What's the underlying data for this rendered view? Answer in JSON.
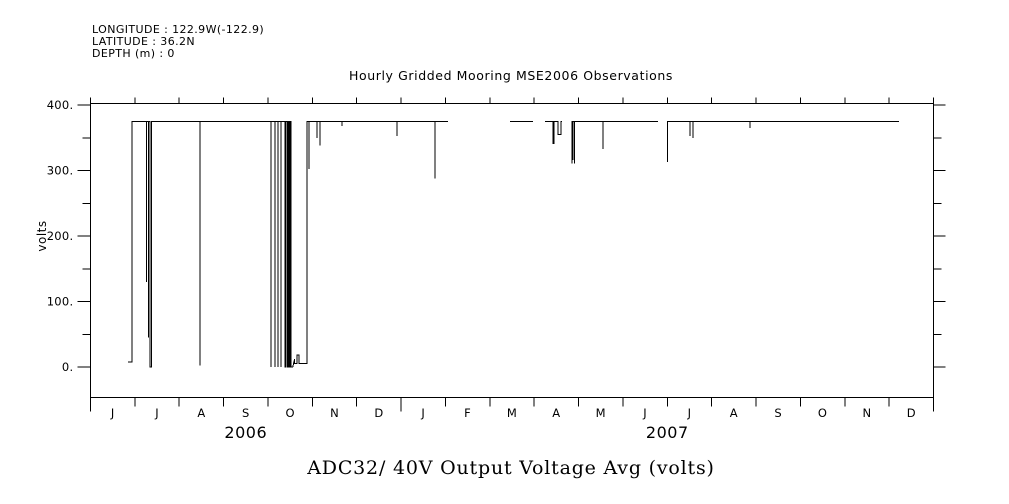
{
  "header": {
    "longitude": "LONGITUDE : 122.9W(-122.9)",
    "latitude": "LATITUDE : 36.2N",
    "depth": "DEPTH (m) : 0"
  },
  "chart_data": {
    "type": "line",
    "title": "Hourly Gridded Mooring MSE2006 Observations",
    "bottom_title": "ADC32/ 40V Output Voltage Avg (volts)",
    "ylabel": "volts",
    "ylim": [
      0,
      400
    ],
    "yticks": [
      {
        "value": 0,
        "label": "0."
      },
      {
        "value": 100,
        "label": "100."
      },
      {
        "value": 200,
        "label": "200."
      },
      {
        "value": 300,
        "label": "300."
      },
      {
        "value": 400,
        "label": "400."
      }
    ],
    "y_minor_ticks": [
      50,
      150,
      250,
      350
    ],
    "grid": false,
    "frame": "box",
    "line_color": "#000000",
    "x_axis": {
      "unit": "months since 2006-06-01",
      "range_months": 19,
      "month_labels": [
        "J",
        "J",
        "A",
        "S",
        "O",
        "N",
        "D",
        "J",
        "F",
        "M",
        "A",
        "M",
        "J",
        "J",
        "A",
        "S",
        "O",
        "N",
        "D"
      ],
      "long_tick_month_indices": [
        0,
        7,
        19
      ],
      "year_labels": [
        {
          "label": "2006",
          "center_month_index": 3.5
        },
        {
          "label": "2007",
          "center_month_index": 13.0
        }
      ]
    },
    "series": [
      {
        "name": "ADC32/ 40V Output Voltage Avg (volts)",
        "color": "#000000",
        "baseline_value": 375,
        "segments": [
          [
            [
              0.845,
              8
            ],
            [
              0.935,
              8
            ],
            [
              0.935,
              375
            ],
            [
              1.26,
              375
            ],
            [
              1.26,
              130
            ],
            [
              1.26,
              375
            ],
            [
              1.31,
              375
            ],
            [
              1.31,
              45
            ],
            [
              1.31,
              375
            ],
            [
              1.34,
              375
            ],
            [
              1.34,
              0
            ],
            [
              1.37,
              0
            ],
            [
              1.37,
              375
            ],
            [
              2.47,
              375
            ],
            [
              2.47,
              2
            ],
            [
              2.47,
              375
            ],
            [
              4.07,
              375
            ],
            [
              4.07,
              0
            ],
            [
              4.07,
              375
            ],
            [
              4.16,
              375
            ],
            [
              4.16,
              0
            ],
            [
              4.16,
              375
            ],
            [
              4.23,
              375
            ],
            [
              4.23,
              0
            ],
            [
              4.23,
              375
            ],
            [
              4.29,
              375
            ],
            [
              4.29,
              0
            ],
            [
              4.29,
              375
            ],
            [
              4.38,
              375
            ],
            [
              4.38,
              0
            ],
            [
              4.4,
              0
            ],
            [
              4.4,
              375
            ],
            [
              4.43,
              375
            ],
            [
              4.43,
              0
            ],
            [
              4.45,
              0
            ],
            [
              4.45,
              375
            ],
            [
              4.47,
              375
            ],
            [
              4.47,
              0
            ],
            [
              4.5,
              0
            ],
            [
              4.5,
              375
            ],
            [
              4.52,
              375
            ],
            [
              4.52,
              0
            ],
            [
              4.56,
              0
            ],
            [
              4.6,
              12
            ],
            [
              4.6,
              5
            ],
            [
              4.65,
              5
            ],
            [
              4.65,
              18
            ],
            [
              4.7,
              18
            ],
            [
              4.7,
              5
            ],
            [
              4.79,
              5
            ],
            [
              4.88,
              5
            ],
            [
              4.88,
              375
            ],
            [
              4.92,
              375
            ],
            [
              4.92,
              302
            ],
            [
              4.92,
              375
            ],
            [
              5.1,
              375
            ],
            [
              5.1,
              350
            ],
            [
              5.1,
              375
            ],
            [
              5.17,
              375
            ],
            [
              5.17,
              338
            ],
            [
              5.17,
              375
            ],
            [
              5.67,
              375
            ],
            [
              5.67,
              368
            ],
            [
              5.67,
              375
            ],
            [
              6.91,
              375
            ],
            [
              6.91,
              353
            ],
            [
              6.91,
              375
            ],
            [
              7.76,
              375
            ],
            [
              7.76,
              288
            ],
            [
              7.76,
              375
            ],
            [
              8.06,
              375
            ]
          ],
          [
            [
              9.45,
              375
            ],
            [
              9.97,
              375
            ]
          ],
          [
            [
              10.24,
              375
            ],
            [
              10.42,
              375
            ],
            [
              10.42,
              341
            ],
            [
              10.45,
              341
            ],
            [
              10.45,
              375
            ],
            [
              10.54,
              375
            ],
            [
              10.54,
              355
            ],
            [
              10.6,
              355
            ],
            [
              10.6,
              375
            ],
            [
              10.63,
              375
            ]
          ],
          [
            [
              10.85,
              375
            ],
            [
              10.85,
              311
            ],
            [
              10.85,
              375
            ],
            [
              10.88,
              375
            ],
            [
              10.88,
              316
            ],
            [
              10.88,
              375
            ],
            [
              10.91,
              375
            ],
            [
              10.91,
              311
            ],
            [
              10.91,
              375
            ],
            [
              11.55,
              375
            ],
            [
              11.55,
              333
            ],
            [
              11.55,
              375
            ],
            [
              12.79,
              375
            ]
          ],
          [
            [
              13.01,
              375
            ],
            [
              13.01,
              313
            ],
            [
              13.01,
              375
            ],
            [
              13.51,
              375
            ],
            [
              13.51,
              353
            ],
            [
              13.51,
              375
            ],
            [
              13.58,
              375
            ],
            [
              13.58,
              350
            ],
            [
              13.58,
              375
            ],
            [
              14.86,
              375
            ],
            [
              14.86,
              365
            ],
            [
              14.86,
              375
            ],
            [
              18.22,
              375
            ]
          ]
        ]
      }
    ]
  }
}
